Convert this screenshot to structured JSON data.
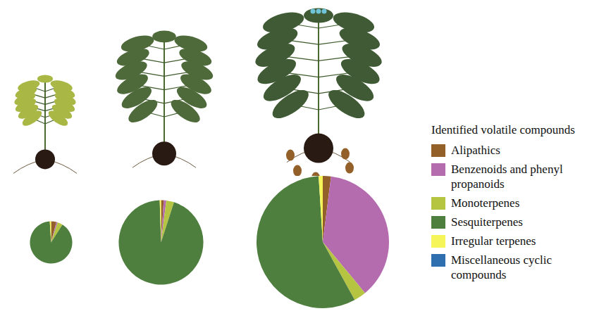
{
  "legend_title": "Identified volatile compounds",
  "legend": "right",
  "chart_data": [
    {
      "type": "pie",
      "categories": [
        "Alipathics",
        "Benzenoids and phenyl propanoids",
        "Monoterpenes",
        "Sesquiterpenes",
        "Irregular terpenes",
        "Miscellaneous cyclic compounds"
      ],
      "values": [
        4,
        1,
        4,
        90,
        1,
        0
      ],
      "colors": [
        "#93602a",
        "#b56cae",
        "#b5c542",
        "#4f7f3f",
        "#f5f55a",
        "#2f6fb0"
      ],
      "total": 1
    },
    {
      "type": "pie",
      "categories": [
        "Alipathics",
        "Benzenoids and phenyl propanoids",
        "Monoterpenes",
        "Sesquiterpenes",
        "Irregular terpenes",
        "Miscellaneous cyclic compounds"
      ],
      "values": [
        1,
        1,
        3,
        95,
        0.5,
        0
      ],
      "colors": [
        "#93602a",
        "#b56cae",
        "#b5c542",
        "#4f7f3f",
        "#f5f55a",
        "#2f6fb0"
      ],
      "total": 4
    },
    {
      "type": "pie",
      "categories": [
        "Alipathics",
        "Benzenoids and phenyl propanoids",
        "Monoterpenes",
        "Sesquiterpenes",
        "Irregular terpenes",
        "Miscellaneous cyclic compounds"
      ],
      "values": [
        2,
        37,
        3,
        57,
        1,
        0
      ],
      "colors": [
        "#93602a",
        "#b56cae",
        "#b5c542",
        "#4f7f3f",
        "#f5f55a",
        "#2f6fb0"
      ],
      "total": 9.8
    }
  ]
}
